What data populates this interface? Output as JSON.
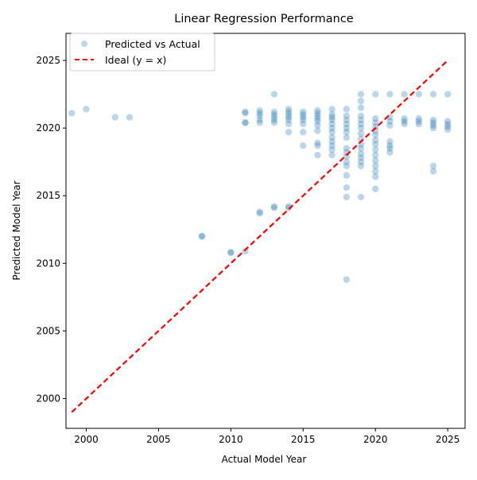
{
  "chart_data": {
    "type": "scatter",
    "title": "Linear Regression Performance",
    "xlabel": "Actual Model Year",
    "ylabel": "Predicted Model Year",
    "xlim": [
      1998.6,
      2026.2
    ],
    "ylim": [
      1997.8,
      2027.0
    ],
    "xticks": [
      2000,
      2005,
      2010,
      2015,
      2020,
      2025
    ],
    "yticks": [
      2000,
      2005,
      2010,
      2015,
      2020,
      2025
    ],
    "grid": false,
    "legend": {
      "placement": "top-left",
      "entries": [
        {
          "label": "Predicted vs Actual",
          "kind": "marker"
        },
        {
          "label": "Ideal (y = x)",
          "kind": "dashed-line"
        }
      ]
    },
    "colors": {
      "scatter": "#1f77b4",
      "ideal_line": "#ff0000"
    },
    "ideal_line": {
      "x": [
        1999,
        2025
      ],
      "y": [
        1999,
        2025
      ]
    },
    "series": [
      {
        "name": "Predicted vs Actual",
        "points": [
          [
            1999,
            2021.1
          ],
          [
            2000,
            2021.4
          ],
          [
            2002,
            2020.8
          ],
          [
            2003,
            2020.8
          ],
          [
            2008,
            2012.0
          ],
          [
            2008,
            2012.0
          ],
          [
            2010,
            2010.8
          ],
          [
            2010,
            2010.8
          ],
          [
            2011,
            2010.9
          ],
          [
            2011,
            2021.2
          ],
          [
            2011,
            2021.1
          ],
          [
            2011,
            2020.4
          ],
          [
            2011,
            2020.4
          ],
          [
            2012,
            2021.3
          ],
          [
            2012,
            2021.1
          ],
          [
            2012,
            2020.9
          ],
          [
            2012,
            2020.6
          ],
          [
            2012,
            2020.4
          ],
          [
            2012,
            2013.8
          ],
          [
            2012,
            2013.7
          ],
          [
            2013,
            2022.5
          ],
          [
            2013,
            2021.2
          ],
          [
            2013,
            2021.0
          ],
          [
            2013,
            2020.8
          ],
          [
            2013,
            2020.6
          ],
          [
            2013,
            2020.4
          ],
          [
            2013,
            2014.2
          ],
          [
            2013,
            2014.1
          ],
          [
            2014,
            2021.4
          ],
          [
            2014,
            2021.2
          ],
          [
            2014,
            2021.0
          ],
          [
            2014,
            2020.8
          ],
          [
            2014,
            2020.6
          ],
          [
            2014,
            2020.3
          ],
          [
            2014,
            2019.7
          ],
          [
            2014,
            2014.2
          ],
          [
            2014,
            2014.1
          ],
          [
            2015,
            2021.2
          ],
          [
            2015,
            2021.0
          ],
          [
            2015,
            2020.8
          ],
          [
            2015,
            2020.6
          ],
          [
            2015,
            2020.3
          ],
          [
            2015,
            2019.7
          ],
          [
            2015,
            2018.7
          ],
          [
            2016,
            2021.3
          ],
          [
            2016,
            2021.1
          ],
          [
            2016,
            2020.9
          ],
          [
            2016,
            2020.7
          ],
          [
            2016,
            2020.5
          ],
          [
            2016,
            2020.2
          ],
          [
            2016,
            2019.8
          ],
          [
            2016,
            2018.9
          ],
          [
            2016,
            2018.7
          ],
          [
            2016,
            2018.0
          ],
          [
            2017,
            2021.4
          ],
          [
            2017,
            2021.0
          ],
          [
            2017,
            2020.8
          ],
          [
            2017,
            2020.6
          ],
          [
            2017,
            2020.3
          ],
          [
            2017,
            2020.0
          ],
          [
            2017,
            2019.7
          ],
          [
            2017,
            2019.3
          ],
          [
            2017,
            2019.0
          ],
          [
            2017,
            2018.7
          ],
          [
            2017,
            2018.4
          ],
          [
            2017,
            2018.0
          ],
          [
            2018,
            2021.4
          ],
          [
            2018,
            2020.9
          ],
          [
            2018,
            2020.6
          ],
          [
            2018,
            2020.3
          ],
          [
            2018,
            2020.0
          ],
          [
            2018,
            2019.7
          ],
          [
            2018,
            2019.3
          ],
          [
            2018,
            2018.5
          ],
          [
            2018,
            2018.2
          ],
          [
            2018,
            2017.9
          ],
          [
            2018,
            2017.5
          ],
          [
            2018,
            2017.2
          ],
          [
            2018,
            2016.5
          ],
          [
            2018,
            2015.6
          ],
          [
            2018,
            2014.9
          ],
          [
            2018,
            2008.8
          ],
          [
            2019,
            2022.5
          ],
          [
            2019,
            2022.0
          ],
          [
            2019,
            2021.5
          ],
          [
            2019,
            2020.9
          ],
          [
            2019,
            2020.6
          ],
          [
            2019,
            2020.3
          ],
          [
            2019,
            2020.0
          ],
          [
            2019,
            2019.6
          ],
          [
            2019,
            2019.2
          ],
          [
            2019,
            2018.8
          ],
          [
            2019,
            2018.5
          ],
          [
            2019,
            2018.1
          ],
          [
            2019,
            2017.8
          ],
          [
            2019,
            2017.5
          ],
          [
            2019,
            2017.2
          ],
          [
            2019,
            2014.9
          ],
          [
            2020,
            2022.5
          ],
          [
            2020,
            2020.7
          ],
          [
            2020,
            2020.4
          ],
          [
            2020,
            2020.1
          ],
          [
            2020,
            2019.8
          ],
          [
            2020,
            2019.5
          ],
          [
            2020,
            2019.1
          ],
          [
            2020,
            2018.8
          ],
          [
            2020,
            2018.4
          ],
          [
            2020,
            2018.0
          ],
          [
            2020,
            2017.6
          ],
          [
            2020,
            2017.2
          ],
          [
            2020,
            2016.8
          ],
          [
            2020,
            2016.4
          ],
          [
            2020,
            2015.5
          ],
          [
            2021,
            2022.5
          ],
          [
            2021,
            2020.8
          ],
          [
            2021,
            2020.5
          ],
          [
            2021,
            2020.2
          ],
          [
            2021,
            2019.0
          ],
          [
            2021,
            2018.7
          ],
          [
            2021,
            2018.5
          ],
          [
            2021,
            2018.2
          ],
          [
            2022,
            2022.5
          ],
          [
            2022,
            2020.7
          ],
          [
            2022,
            2020.5
          ],
          [
            2022,
            2020.3
          ],
          [
            2023,
            2022.5
          ],
          [
            2023,
            2020.7
          ],
          [
            2023,
            2020.5
          ],
          [
            2023,
            2020.3
          ],
          [
            2024,
            2022.5
          ],
          [
            2024,
            2020.6
          ],
          [
            2024,
            2020.4
          ],
          [
            2024,
            2020.2
          ],
          [
            2024,
            2020.0
          ],
          [
            2024,
            2017.2
          ],
          [
            2024,
            2016.8
          ],
          [
            2025,
            2022.5
          ],
          [
            2025,
            2020.5
          ],
          [
            2025,
            2020.3
          ],
          [
            2025,
            2020.1
          ],
          [
            2025,
            2019.9
          ]
        ]
      }
    ]
  }
}
